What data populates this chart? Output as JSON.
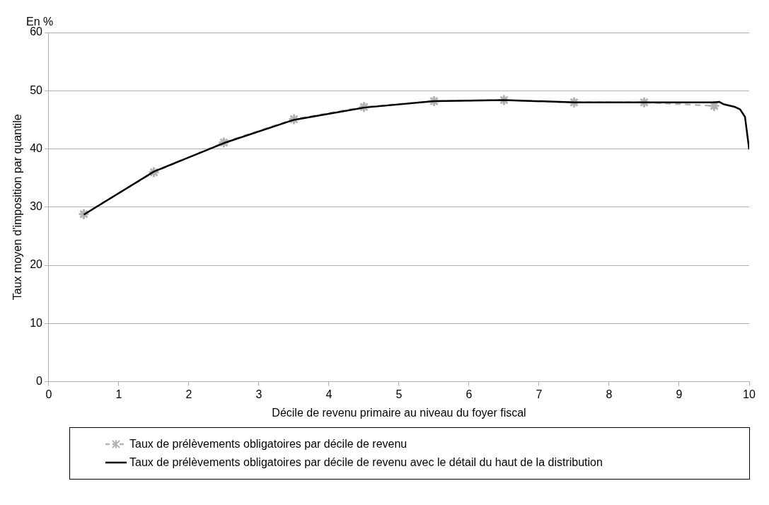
{
  "chart_data": {
    "type": "line",
    "xlabel": "Décile de revenu primaire au niveau du foyer fiscal",
    "ylabel": "Taux moyen d'imposition par quantile",
    "annotations": [
      "En %"
    ],
    "xlim": [
      0,
      10
    ],
    "xticks": [
      0,
      1,
      2,
      3,
      4,
      5,
      6,
      7,
      8,
      9,
      10
    ],
    "ylim": [
      0,
      60
    ],
    "yticks": [
      0,
      10,
      20,
      30,
      40,
      50,
      60
    ],
    "grid": "y",
    "legend": "bottom",
    "series": [
      {
        "name": "Taux de prélèvements obligatoires par décile de revenu",
        "color": "#b3b3b3",
        "marker": "cross",
        "line_style": "dashed",
        "x": [
          0.5,
          1.5,
          2.5,
          3.5,
          4.5,
          5.5,
          6.5,
          7.5,
          8.5,
          9.5
        ],
        "values": [
          28.8,
          36.0,
          41.1,
          45.1,
          47.2,
          48.2,
          48.4,
          48.0,
          48.0,
          47.4
        ]
      },
      {
        "name": "Taux de prélèvements obligatoires par décile de revenu avec le détail du haut de la distribution",
        "color": "#000000",
        "marker": "none",
        "line_style": "solid",
        "x": [
          0.5,
          1.5,
          2.5,
          3.5,
          4.5,
          5.5,
          6.5,
          7.5,
          8.5,
          9.5,
          9.57,
          9.63,
          9.8,
          9.87,
          9.94,
          10
        ],
        "values": [
          28.7,
          36.1,
          41.0,
          45.0,
          47.1,
          48.2,
          48.4,
          48.0,
          48.0,
          48.0,
          48.1,
          47.7,
          47.2,
          46.8,
          45.5,
          39.9
        ]
      }
    ]
  }
}
